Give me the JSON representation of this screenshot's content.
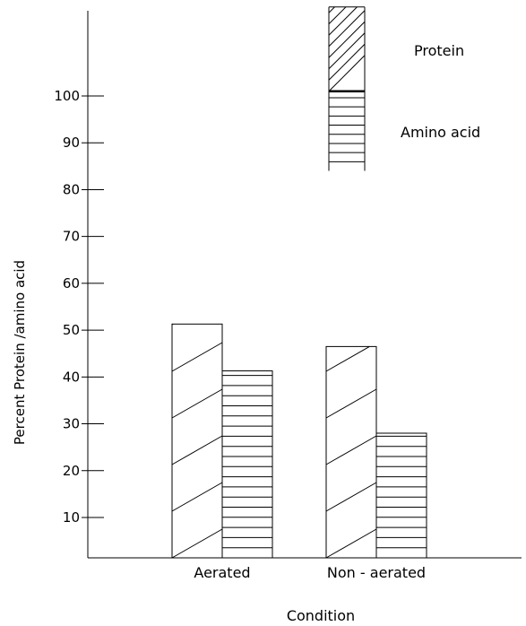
{
  "chart_data": {
    "type": "bar",
    "title": "",
    "xlabel": "Condition",
    "ylabel": "Percent Protein /amino acid",
    "categories": [
      "Aerated",
      "Non - aerated"
    ],
    "series": [
      {
        "name": "Protein",
        "pattern": "diagonal-hatch",
        "values": [
          51.3,
          46.5
        ]
      },
      {
        "name": "Amino acid",
        "pattern": "horizontal-hatch",
        "values": [
          41.3,
          28.0
        ]
      }
    ],
    "yticks": [
      10,
      20,
      30,
      40,
      50,
      60,
      70,
      80,
      90,
      100
    ],
    "ylim": [
      1,
      120
    ],
    "legend": {
      "placement": "top-right",
      "style": "stacked-swatch",
      "range_start": 84,
      "boundary": 101,
      "range_end": 119
    },
    "colors": {
      "stroke": "#000000",
      "background": "#ffffff"
    }
  }
}
